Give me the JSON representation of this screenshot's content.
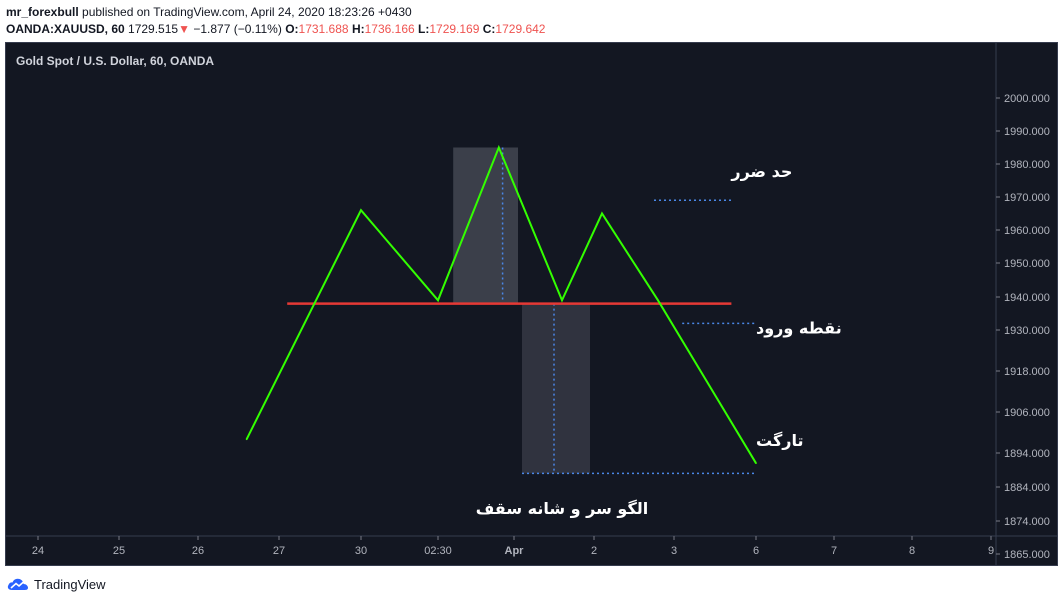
{
  "header": {
    "author": "mr_forexbull",
    "published": "published on TradingView.com, April 24, 2020 18:23:26 +0430",
    "symbol_line": "OANDA:XAUUSD, 60",
    "last_price": "1729.515",
    "change": "−1.877 (−0.11%)",
    "o_label": "O:",
    "o_value": "1731.688",
    "h_label": "H:",
    "h_value": "1736.166",
    "l_label": "L:",
    "l_value": "1729.169",
    "c_label": "C:",
    "c_value": "1729.642"
  },
  "footer": {
    "brand": "TradingView"
  },
  "colors": {
    "background": "#131722",
    "pattern_line": "#33ff00",
    "neckline": "#e53935",
    "box": "#5d606b",
    "dotted": "#4a88e8",
    "axis_text": "#b2b5be",
    "down": "#ef5350"
  },
  "chart_data": {
    "type": "line",
    "title": "Gold Spot / U.S. Dollar, 60, OANDA",
    "x_ticks": [
      "24",
      "25",
      "26",
      "27",
      "30",
      "02:30",
      "Apr",
      "2",
      "3",
      "6",
      "7",
      "8",
      "9"
    ],
    "y_ticks": [
      2000.0,
      1990.0,
      1980.0,
      1970.0,
      1960.0,
      1950.0,
      1940.0,
      1930.0,
      1918.0,
      1906.0,
      1894.0,
      1884.0,
      1874.0,
      1865.0
    ],
    "y_tick_labels": [
      "2000.000",
      "1990.000",
      "1980.000",
      "1970.000",
      "1960.000",
      "1950.000",
      "1940.000",
      "1930.000",
      "1918.000",
      "1906.000",
      "1894.000",
      "1884.000",
      "1874.000",
      "1865.000"
    ],
    "series": [
      {
        "style": "head-and-shoulders polyline",
        "x": [
          26.6,
          28.0,
          29.0,
          29.8,
          30.6,
          31.1,
          31.8,
          33.0
        ],
        "y": [
          1898,
          1966,
          1939,
          1985,
          1939,
          1965,
          1939,
          1891
        ]
      }
    ],
    "neckline": {
      "x0": 27.1,
      "x1": 32.7,
      "y": 1938
    },
    "boxes": [
      {
        "x0": 29.2,
        "x1": 30.05,
        "y0": 1938,
        "y1": 1985
      },
      {
        "x0": 30.1,
        "x1": 30.95,
        "y0": 1888,
        "y1": 1938
      }
    ],
    "dotted_lines": [
      {
        "x0": 29.85,
        "x1": 29.85,
        "y0": 1985,
        "y1": 1938
      },
      {
        "x0": 30.5,
        "x1": 30.5,
        "y0": 1938,
        "y1": 1888
      },
      {
        "x0": 30.1,
        "x1": 33.0,
        "y0": 1888,
        "y1": 1888
      },
      {
        "x0": 31.75,
        "x1": 32.7,
        "y0": 1969,
        "y1": 1969
      },
      {
        "x0": 32.1,
        "x1": 33.0,
        "y0": 1932,
        "y1": 1932
      }
    ],
    "annotations": [
      {
        "text": "حد ضرر",
        "x": 32.7,
        "y": 1976
      },
      {
        "text": "نقطه ورود",
        "x": 33.0,
        "y": 1929
      },
      {
        "text": "تارگت",
        "x": 33.0,
        "y": 1896
      },
      {
        "text": "الگو سر و شانه سقف",
        "x": 30.6,
        "y": 1876
      }
    ]
  }
}
